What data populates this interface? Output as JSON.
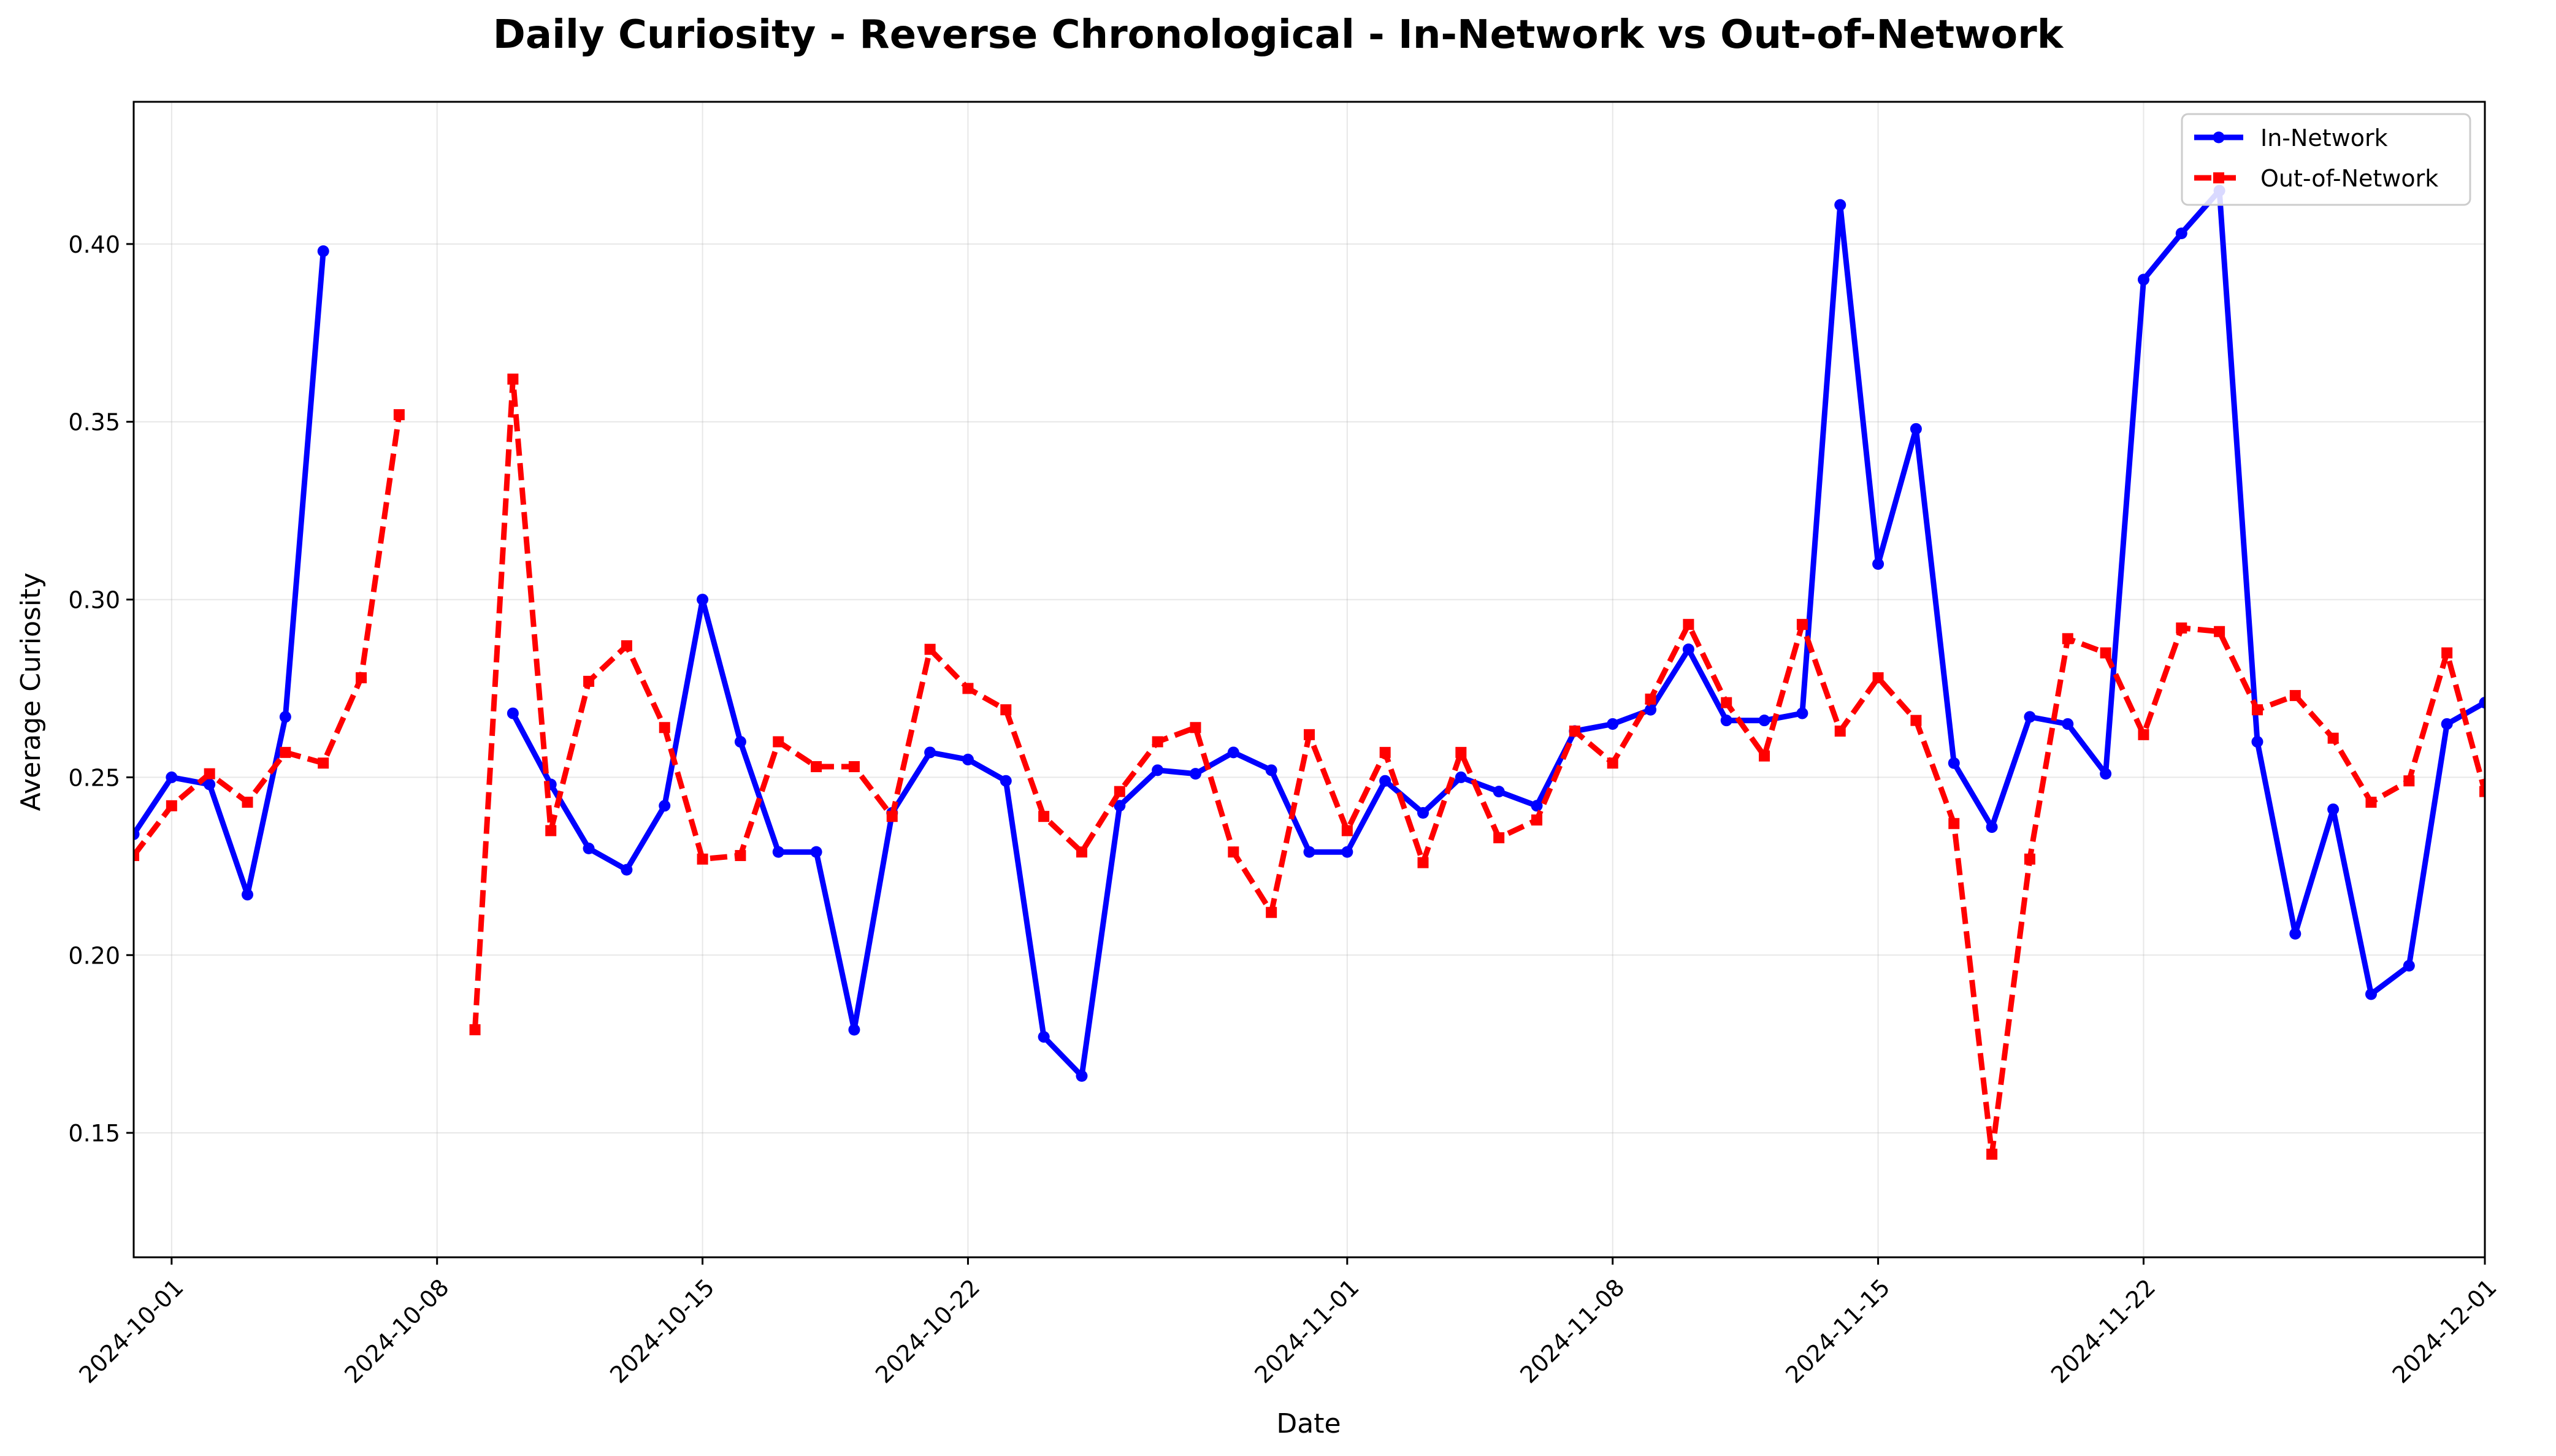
{
  "chart_data": {
    "type": "line",
    "title": "Daily Curiosity - Reverse Chronological - In-Network vs Out-of-Network",
    "xlabel": "Date",
    "ylabel": "Average Curiosity",
    "xlim": [
      "2024-09-30",
      "2024-12-01"
    ],
    "ylim": [
      0.115,
      0.44
    ],
    "x_ticks": [
      "2024-10-01",
      "2024-10-08",
      "2024-10-15",
      "2024-10-22",
      "2024-11-01",
      "2024-11-08",
      "2024-11-15",
      "2024-11-22",
      "2024-12-01"
    ],
    "y_ticks": [
      0.15,
      0.2,
      0.25,
      0.3,
      0.35,
      0.4
    ],
    "y_tick_labels": [
      "0.15",
      "0.20",
      "0.25",
      "0.30",
      "0.35",
      "0.40"
    ],
    "grid": true,
    "legend_position": "top-right",
    "series": [
      {
        "name": "In-Network",
        "color": "#0000ff",
        "line_style": "solid",
        "marker": "circle",
        "points": [
          [
            "2024-09-30",
            0.234
          ],
          [
            "2024-10-01",
            0.25
          ],
          [
            "2024-10-02",
            0.248
          ],
          [
            "2024-10-03",
            0.217
          ],
          [
            "2024-10-04",
            0.267
          ],
          [
            "2024-10-05",
            0.398
          ],
          [
            "2024-10-10",
            0.268
          ],
          [
            "2024-10-11",
            0.248
          ],
          [
            "2024-10-12",
            0.23
          ],
          [
            "2024-10-13",
            0.224
          ],
          [
            "2024-10-14",
            0.242
          ],
          [
            "2024-10-15",
            0.3
          ],
          [
            "2024-10-16",
            0.26
          ],
          [
            "2024-10-17",
            0.229
          ],
          [
            "2024-10-18",
            0.229
          ],
          [
            "2024-10-19",
            0.179
          ],
          [
            "2024-10-20",
            0.24
          ],
          [
            "2024-10-21",
            0.257
          ],
          [
            "2024-10-22",
            0.255
          ],
          [
            "2024-10-23",
            0.249
          ],
          [
            "2024-10-24",
            0.177
          ],
          [
            "2024-10-25",
            0.166
          ],
          [
            "2024-10-26",
            0.242
          ],
          [
            "2024-10-27",
            0.252
          ],
          [
            "2024-10-28",
            0.251
          ],
          [
            "2024-10-29",
            0.257
          ],
          [
            "2024-10-30",
            0.252
          ],
          [
            "2024-10-31",
            0.229
          ],
          [
            "2024-11-01",
            0.229
          ],
          [
            "2024-11-02",
            0.249
          ],
          [
            "2024-11-03",
            0.24
          ],
          [
            "2024-11-04",
            0.25
          ],
          [
            "2024-11-05",
            0.246
          ],
          [
            "2024-11-06",
            0.242
          ],
          [
            "2024-11-07",
            0.263
          ],
          [
            "2024-11-08",
            0.265
          ],
          [
            "2024-11-09",
            0.269
          ],
          [
            "2024-11-10",
            0.286
          ],
          [
            "2024-11-11",
            0.266
          ],
          [
            "2024-11-12",
            0.266
          ],
          [
            "2024-11-13",
            0.268
          ],
          [
            "2024-11-14",
            0.411
          ],
          [
            "2024-11-15",
            0.31
          ],
          [
            "2024-11-16",
            0.348
          ],
          [
            "2024-11-17",
            0.254
          ],
          [
            "2024-11-18",
            0.236
          ],
          [
            "2024-11-19",
            0.267
          ],
          [
            "2024-11-20",
            0.265
          ],
          [
            "2024-11-21",
            0.251
          ],
          [
            "2024-11-22",
            0.39
          ],
          [
            "2024-11-23",
            0.403
          ],
          [
            "2024-11-24",
            0.415
          ],
          [
            "2024-11-25",
            0.26
          ],
          [
            "2024-11-26",
            0.206
          ],
          [
            "2024-11-27",
            0.241
          ],
          [
            "2024-11-28",
            0.189
          ],
          [
            "2024-11-29",
            0.197
          ],
          [
            "2024-11-30",
            0.265
          ],
          [
            "2024-12-01",
            0.271
          ]
        ]
      },
      {
        "name": "Out-of-Network",
        "color": "#ff0000",
        "line_style": "dashed",
        "marker": "square",
        "points": [
          [
            "2024-09-30",
            0.228
          ],
          [
            "2024-10-01",
            0.242
          ],
          [
            "2024-10-02",
            0.251
          ],
          [
            "2024-10-03",
            0.243
          ],
          [
            "2024-10-04",
            0.257
          ],
          [
            "2024-10-05",
            0.254
          ],
          [
            "2024-10-06",
            0.278
          ],
          [
            "2024-10-07",
            0.352
          ],
          [
            "2024-10-09",
            0.179
          ],
          [
            "2024-10-10",
            0.362
          ],
          [
            "2024-10-11",
            0.235
          ],
          [
            "2024-10-12",
            0.277
          ],
          [
            "2024-10-13",
            0.287
          ],
          [
            "2024-10-14",
            0.264
          ],
          [
            "2024-10-15",
            0.227
          ],
          [
            "2024-10-16",
            0.228
          ],
          [
            "2024-10-17",
            0.26
          ],
          [
            "2024-10-18",
            0.253
          ],
          [
            "2024-10-19",
            0.253
          ],
          [
            "2024-10-20",
            0.239
          ],
          [
            "2024-10-21",
            0.286
          ],
          [
            "2024-10-22",
            0.275
          ],
          [
            "2024-10-23",
            0.269
          ],
          [
            "2024-10-24",
            0.239
          ],
          [
            "2024-10-25",
            0.229
          ],
          [
            "2024-10-26",
            0.246
          ],
          [
            "2024-10-27",
            0.26
          ],
          [
            "2024-10-28",
            0.264
          ],
          [
            "2024-10-29",
            0.229
          ],
          [
            "2024-10-30",
            0.212
          ],
          [
            "2024-10-31",
            0.262
          ],
          [
            "2024-11-01",
            0.235
          ],
          [
            "2024-11-02",
            0.257
          ],
          [
            "2024-11-03",
            0.226
          ],
          [
            "2024-11-04",
            0.257
          ],
          [
            "2024-11-05",
            0.233
          ],
          [
            "2024-11-06",
            0.238
          ],
          [
            "2024-11-07",
            0.263
          ],
          [
            "2024-11-08",
            0.254
          ],
          [
            "2024-11-09",
            0.272
          ],
          [
            "2024-11-10",
            0.293
          ],
          [
            "2024-11-11",
            0.271
          ],
          [
            "2024-11-12",
            0.256
          ],
          [
            "2024-11-13",
            0.293
          ],
          [
            "2024-11-14",
            0.263
          ],
          [
            "2024-11-15",
            0.278
          ],
          [
            "2024-11-16",
            0.266
          ],
          [
            "2024-11-17",
            0.237
          ],
          [
            "2024-11-18",
            0.144
          ],
          [
            "2024-11-19",
            0.227
          ],
          [
            "2024-11-20",
            0.289
          ],
          [
            "2024-11-21",
            0.285
          ],
          [
            "2024-11-22",
            0.262
          ],
          [
            "2024-11-23",
            0.292
          ],
          [
            "2024-11-24",
            0.291
          ],
          [
            "2024-11-25",
            0.269
          ],
          [
            "2024-11-26",
            0.273
          ],
          [
            "2024-11-27",
            0.261
          ],
          [
            "2024-11-28",
            0.243
          ],
          [
            "2024-11-29",
            0.249
          ],
          [
            "2024-11-30",
            0.285
          ],
          [
            "2024-12-01",
            0.246
          ]
        ]
      }
    ]
  }
}
